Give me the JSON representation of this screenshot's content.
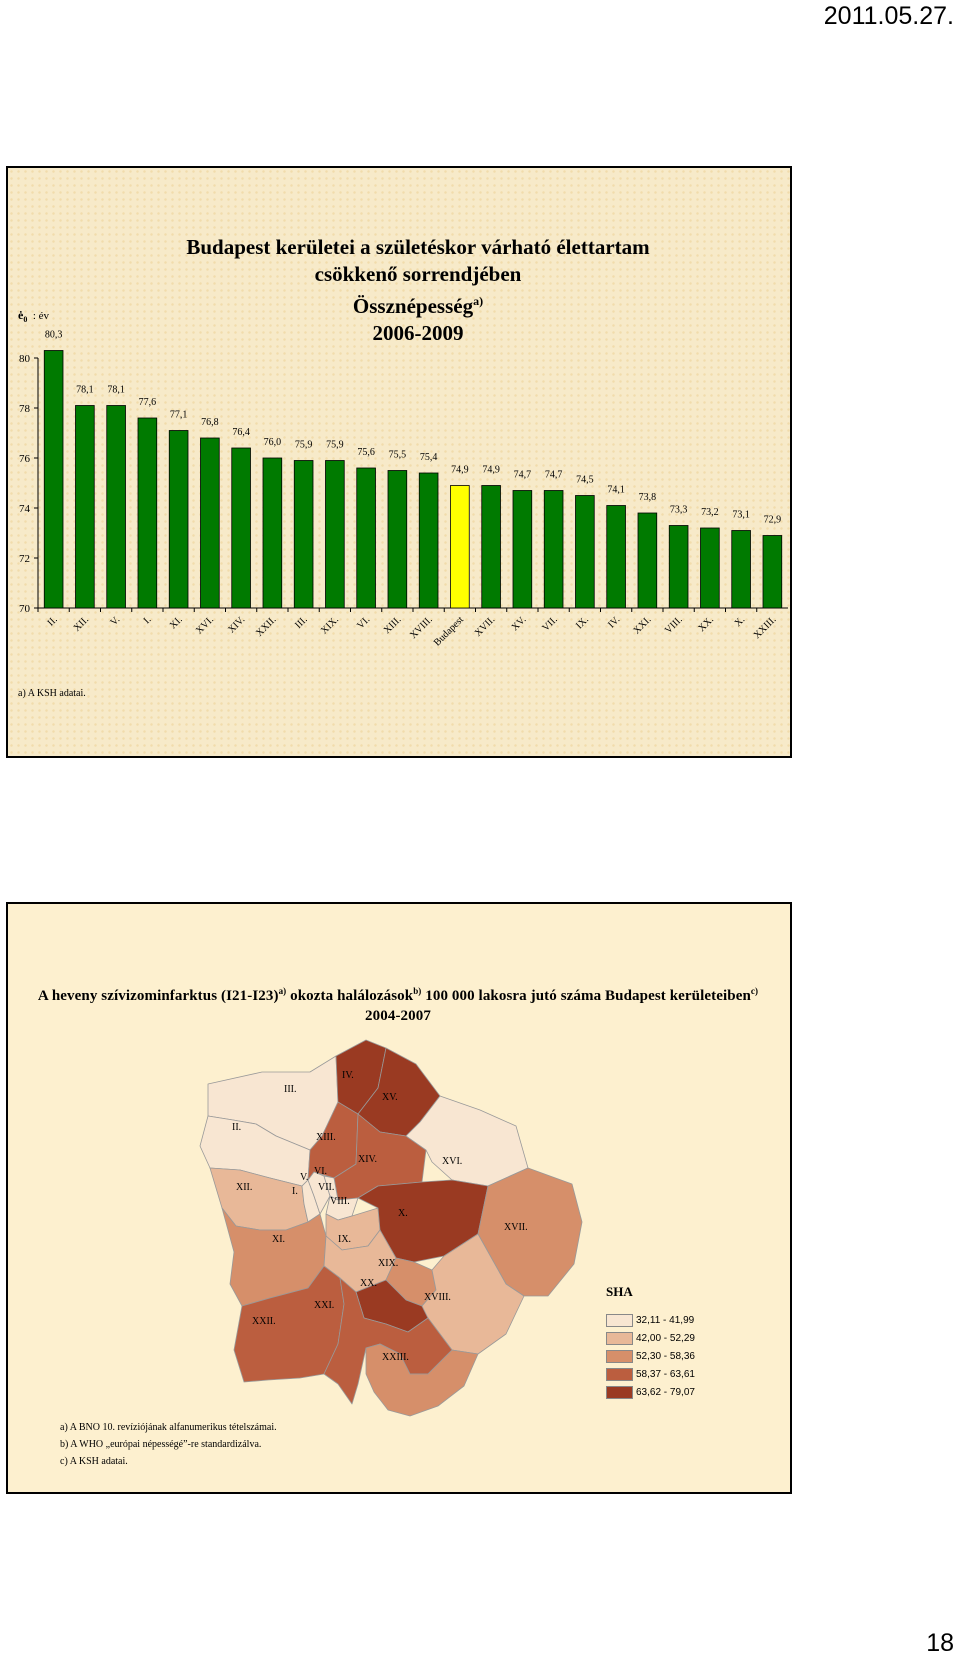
{
  "header": {
    "date": "2011.05.27."
  },
  "footer": {
    "page_number": "18"
  },
  "slide1": {
    "title_line1": "Budapest kerületei a születéskor várható élettartam",
    "title_line2": "csökkenő sorrendjében",
    "title_line3": "Össznépesség",
    "title_line3_sup": "a)",
    "title_line4": "2006-2009",
    "y_symbol": "ė",
    "y_symbol_sub": "0",
    "y_unit": ": év",
    "footnote": "a) A KSH adatai.",
    "colors": {
      "bar": "#007a00",
      "highlight": "#ffff00"
    }
  },
  "chart_data": {
    "type": "bar",
    "ylim": [
      70,
      80
    ],
    "yticks": [
      "70",
      "72",
      "74",
      "76",
      "78",
      "80"
    ],
    "grid": false,
    "legend": "none",
    "categories": [
      "II.",
      "XII.",
      "V.",
      "I.",
      "XI.",
      "XVI.",
      "XIV.",
      "XXII.",
      "III.",
      "XIX.",
      "VI.",
      "XIII.",
      "XVIII.",
      "Budapest",
      "XVII.",
      "XV.",
      "VII.",
      "IX.",
      "IV.",
      "XXI.",
      "VIII.",
      "XX.",
      "X.",
      "XXIII."
    ],
    "values": [
      80.3,
      78.1,
      78.1,
      77.6,
      77.1,
      76.8,
      76.4,
      76.0,
      75.9,
      75.9,
      75.6,
      75.5,
      75.4,
      74.9,
      74.9,
      74.7,
      74.7,
      74.5,
      74.1,
      73.8,
      73.3,
      73.2,
      73.1,
      72.9
    ],
    "value_labels": [
      "80,3",
      "78,1",
      "78,1",
      "77,6",
      "77,1",
      "76,8",
      "76,4",
      "76,0",
      "75,9",
      "75,9",
      "75,6",
      "75,5",
      "75,4",
      "74,9",
      "74,9",
      "74,7",
      "74,7",
      "74,5",
      "74,1",
      "73,8",
      "73,3",
      "73,2",
      "73,1",
      "72,9"
    ],
    "highlight": "Budapest"
  },
  "slide2": {
    "title_line1": "A heveny szívizominfarktus (I21-I23)",
    "title_sup1": "a)",
    "title_mid1": " okozta halálozások",
    "title_sup2": "b)",
    "title_mid2": " 100 000 lakosra jutó száma Budapest kerületeiben",
    "title_sup3": "c)",
    "title_line2": "2004-2007",
    "legend_title": "SHA",
    "legend": [
      {
        "label": "32,11 - 41,99",
        "color": "#f8e6d2"
      },
      {
        "label": "42,00 - 52,29",
        "color": "#e8b898"
      },
      {
        "label": "52,30 - 58,36",
        "color": "#d68f6a"
      },
      {
        "label": "58,37 - 63,61",
        "color": "#bb5e3f"
      },
      {
        "label": "63,62 - 79,07",
        "color": "#9a3a22"
      }
    ],
    "districts": [
      {
        "label": "IV.",
        "color": "#9a3a22"
      },
      {
        "label": "XV.",
        "color": "#9a3a22"
      },
      {
        "label": "III.",
        "color": "#f8e6d2"
      },
      {
        "label": "II.",
        "color": "#f8e6d2"
      },
      {
        "label": "XIII.",
        "color": "#bb5e3f"
      },
      {
        "label": "XIV.",
        "color": "#bb5e3f"
      },
      {
        "label": "XVI.",
        "color": "#f8e6d2"
      },
      {
        "label": "XII.",
        "color": "#e8b898"
      },
      {
        "label": "I.",
        "color": "#f8e6d2"
      },
      {
        "label": "V.",
        "color": "#f8e6d2"
      },
      {
        "label": "VI.",
        "color": "#f8e6d2"
      },
      {
        "label": "VII.",
        "color": "#f8e6d2"
      },
      {
        "label": "VIII.",
        "color": "#e8b898"
      },
      {
        "label": "X.",
        "color": "#9a3a22"
      },
      {
        "label": "XVII.",
        "color": "#d68f6a"
      },
      {
        "label": "XI.",
        "color": "#d68f6a"
      },
      {
        "label": "IX.",
        "color": "#e8b898"
      },
      {
        "label": "XIX.",
        "color": "#d68f6a"
      },
      {
        "label": "XX.",
        "color": "#9a3a22"
      },
      {
        "label": "XVIII.",
        "color": "#e8b898"
      },
      {
        "label": "XXII.",
        "color": "#bb5e3f"
      },
      {
        "label": "XXI.",
        "color": "#bb5e3f"
      },
      {
        "label": "XXIII.",
        "color": "#d68f6a"
      }
    ],
    "footnotes": [
      "a) A BNO 10. revíziójának alfanumerikus tételszámai.",
      "b) A WHO „európai népességé”-re standardizálva.",
      "c) A KSH adatai."
    ]
  }
}
